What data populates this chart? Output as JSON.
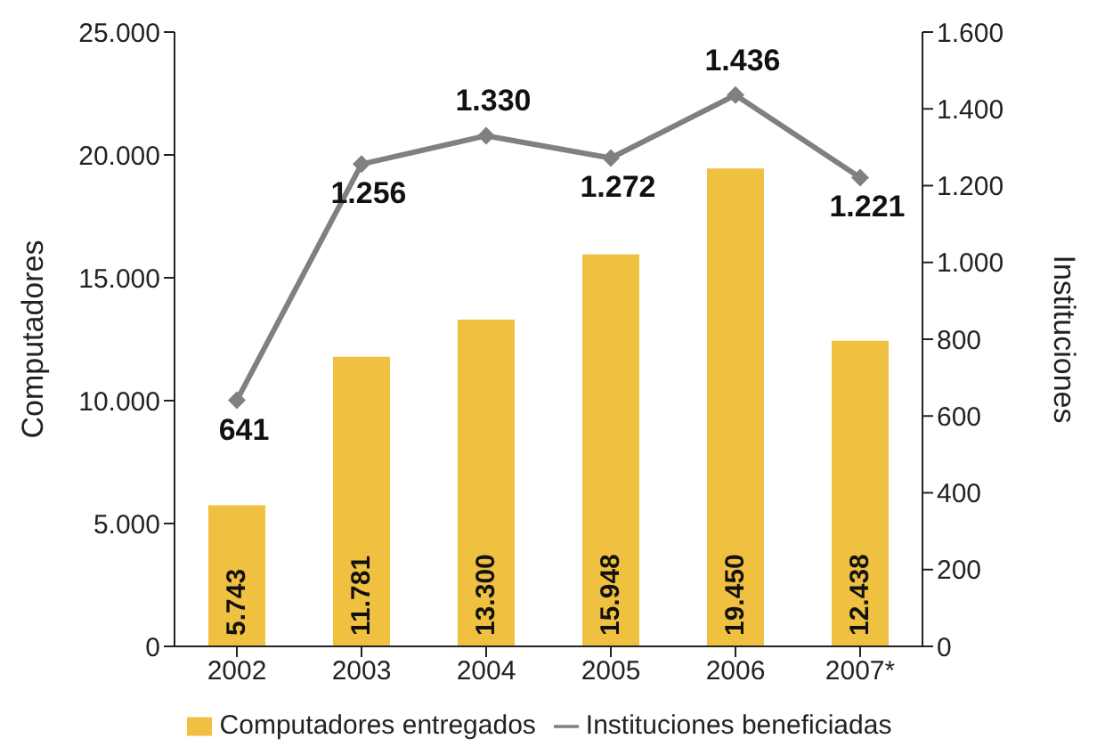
{
  "chart_data": {
    "type": "bar",
    "categories": [
      "2002",
      "2003",
      "2004",
      "2005",
      "2006",
      "2007*"
    ],
    "ylabel": "Computadores",
    "y2label": "Instituciones",
    "series": [
      {
        "name": "Computadores entregados",
        "color": "#f0c040",
        "values": [
          5743,
          11781,
          13300,
          15948,
          19450,
          12438
        ],
        "value_labels": [
          "5.743",
          "11.781",
          "13.300",
          "15.948",
          "19.450",
          "12.438"
        ]
      },
      {
        "name": "Instituciones beneficiadas",
        "type": "line",
        "axis": "y2",
        "color": "#808080",
        "values": [
          641,
          1256,
          1330,
          1272,
          1436,
          1221
        ],
        "value_labels": [
          "641",
          "1.256",
          "1.330",
          "1.272",
          "1.436",
          "1.221"
        ]
      }
    ],
    "ylim": [
      0,
      25000
    ],
    "yticks": [
      0,
      {
        "value": 5000,
        "label": "5.000"
      },
      {
        "value": 10000,
        "label": "10.000"
      },
      {
        "value": 15000,
        "label": "15.000"
      },
      {
        "value": 20000,
        "label": "20.000"
      },
      {
        "value": 25000,
        "label": "25.000"
      }
    ],
    "y2lim": [
      0,
      1600
    ],
    "y2ticks": [
      0,
      200,
      400,
      600,
      800,
      {
        "value": 1000,
        "label": "1.000"
      },
      {
        "value": 1200,
        "label": "1.200"
      },
      {
        "value": 1400,
        "label": "1.400"
      },
      {
        "value": 1600,
        "label": "1.600"
      }
    ],
    "marker": "diamond",
    "legend": "bottom",
    "grid": false
  }
}
